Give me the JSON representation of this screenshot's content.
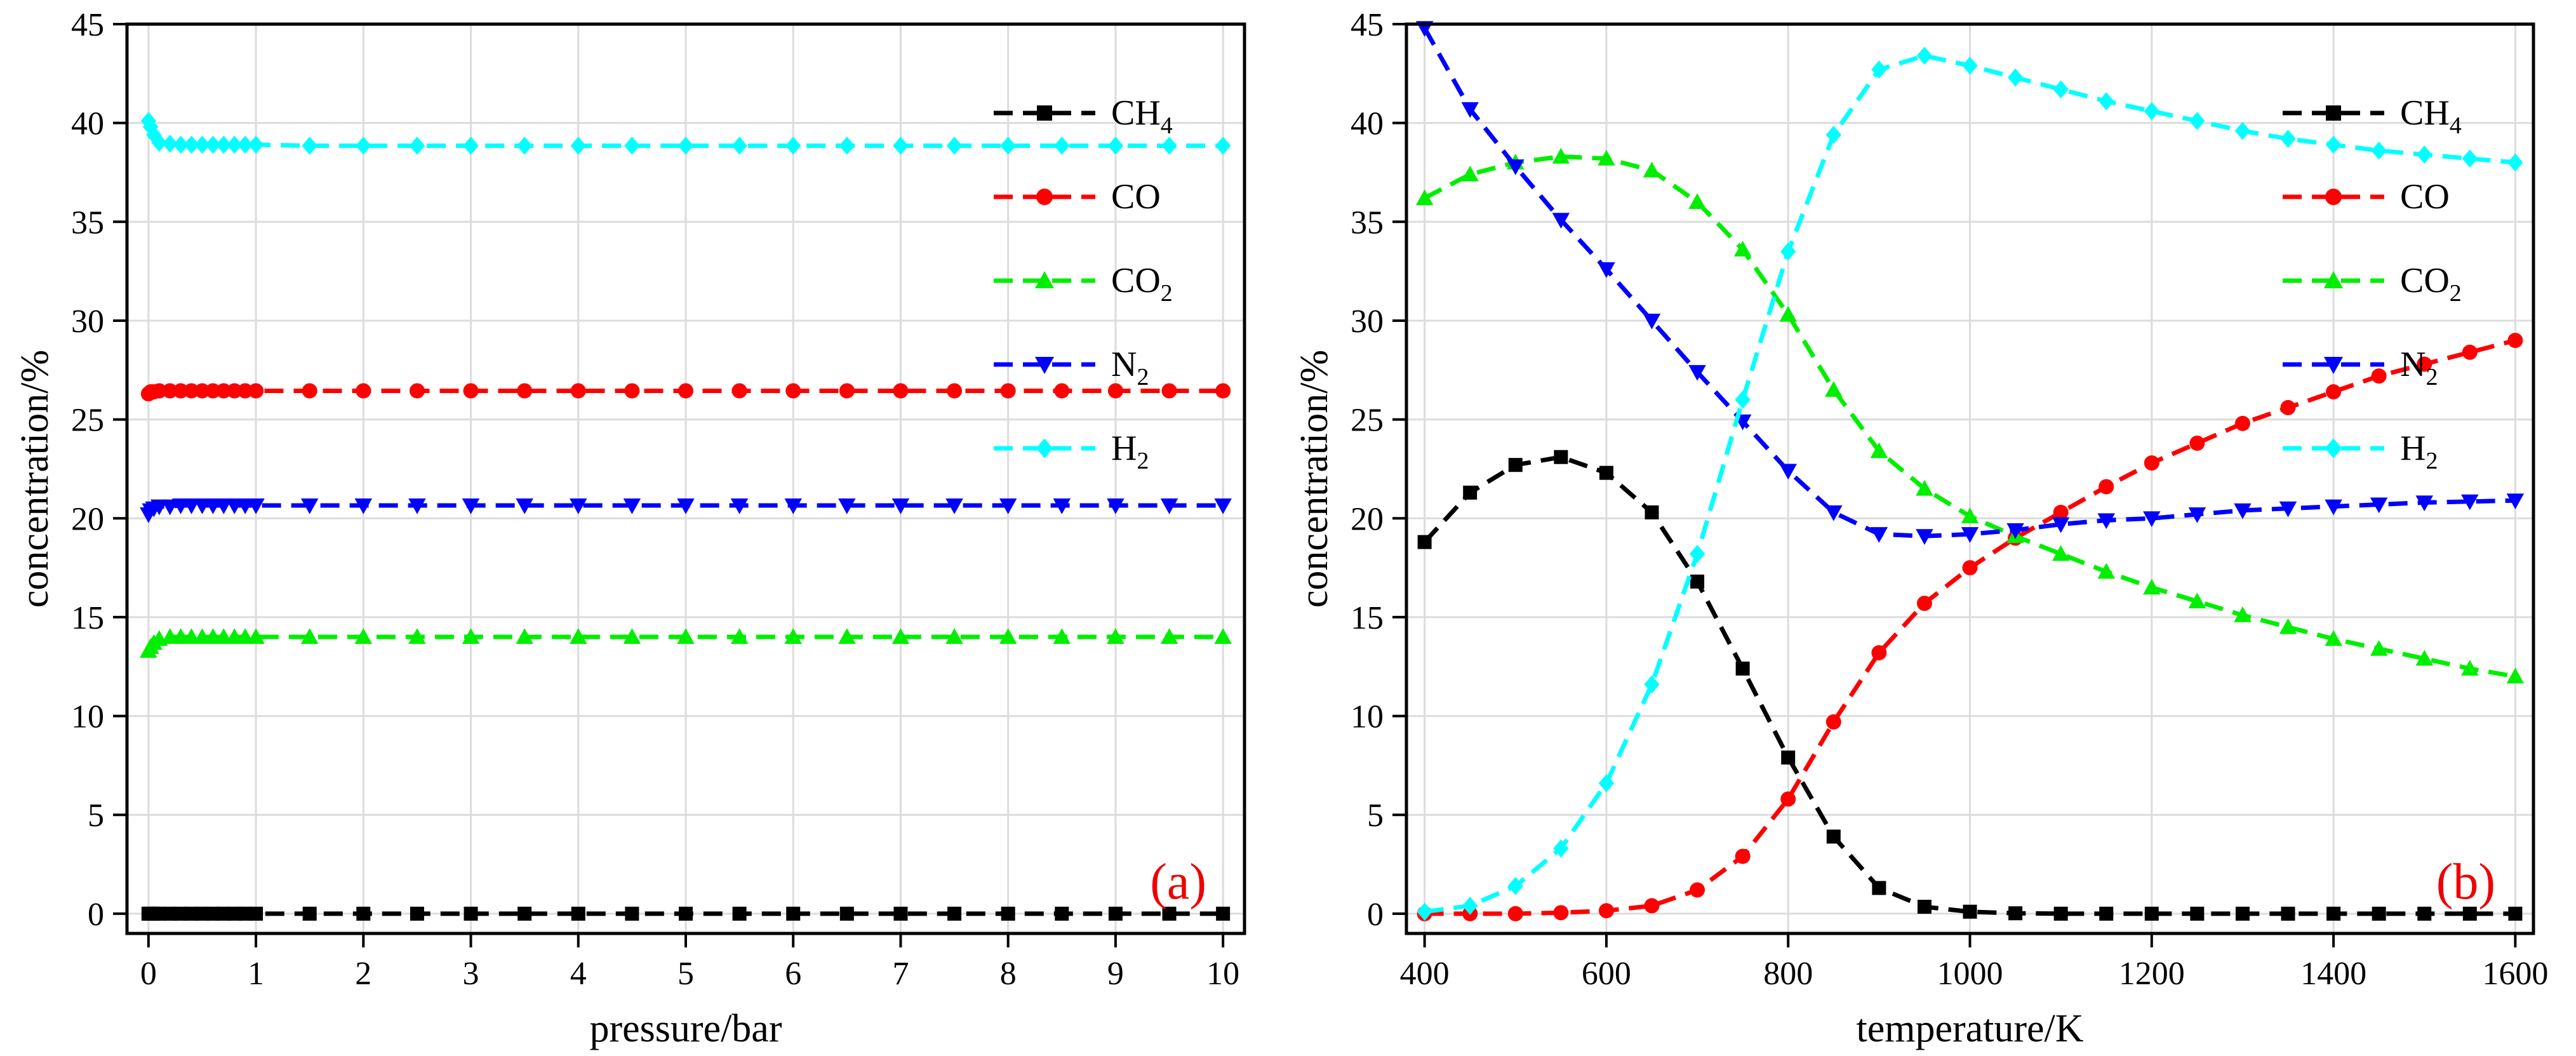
{
  "figure": {
    "series_styles": {
      "CH4": {
        "color": "#000000",
        "marker": "square"
      },
      "CO": {
        "color": "#ff0000",
        "marker": "circle"
      },
      "CO2": {
        "color": "#00ee00",
        "marker": "triangle-up"
      },
      "N2": {
        "color": "#0000ff",
        "marker": "triangle-down"
      },
      "H2": {
        "color": "#00ffff",
        "marker": "diamond"
      }
    },
    "panel_label_color": "#ee0000"
  },
  "chart_data": [
    {
      "type": "line",
      "panel_label": "(a)",
      "xlabel": "pressure/bar",
      "ylabel": "concentration/%",
      "xlim": [
        -0.2,
        10.2
      ],
      "ylim": [
        -1,
        45
      ],
      "xticks": [
        0,
        1,
        2,
        3,
        4,
        5,
        6,
        7,
        8,
        9,
        10
      ],
      "xtick_labels": [
        "0",
        "1",
        "2",
        "3",
        "4",
        "5",
        "6",
        "7",
        "8",
        "9",
        "10"
      ],
      "yticks": [
        0,
        5,
        10,
        15,
        20,
        25,
        30,
        35,
        40,
        45
      ],
      "ytick_labels": [
        "0",
        "5",
        "10",
        "15",
        "20",
        "25",
        "30",
        "35",
        "40",
        "45"
      ],
      "legend_position": "top-right",
      "x": [
        0,
        0.02,
        0.05,
        0.1,
        0.2,
        0.3,
        0.4,
        0.5,
        0.6,
        0.7,
        0.8,
        0.9,
        1.0,
        1.5,
        2,
        2.5,
        3,
        3.5,
        4,
        4.5,
        5,
        5.5,
        6,
        6.5,
        7,
        7.5,
        8,
        8.5,
        9,
        9.5,
        10
      ],
      "series": [
        {
          "key": "CH4",
          "name": "CH",
          "sub": "4",
          "values": [
            0,
            0,
            0,
            0,
            0,
            0,
            0,
            0,
            0,
            0,
            0,
            0,
            0,
            0,
            0,
            0,
            0,
            0,
            0,
            0,
            0,
            0,
            0,
            0,
            0,
            0,
            0,
            0,
            0,
            0,
            0
          ]
        },
        {
          "key": "CO",
          "name": "CO",
          "sub": "",
          "values": [
            26.3,
            26.4,
            26.4,
            26.45,
            26.45,
            26.45,
            26.45,
            26.45,
            26.45,
            26.45,
            26.45,
            26.45,
            26.45,
            26.45,
            26.45,
            26.45,
            26.45,
            26.45,
            26.45,
            26.45,
            26.45,
            26.45,
            26.45,
            26.45,
            26.45,
            26.45,
            26.45,
            26.45,
            26.45,
            26.45,
            26.45
          ]
        },
        {
          "key": "CO2",
          "name": "CO",
          "sub": "2",
          "values": [
            13.3,
            13.5,
            13.7,
            13.9,
            14.0,
            14.0,
            14.0,
            14.0,
            14.0,
            14.0,
            14.0,
            14.0,
            14.0,
            14.0,
            14.0,
            14.0,
            14.0,
            14.0,
            14.0,
            14.0,
            14.0,
            14.0,
            14.0,
            14.0,
            14.0,
            14.0,
            14.0,
            14.0,
            14.0,
            14.0,
            14.0
          ]
        },
        {
          "key": "N2",
          "name": "N",
          "sub": "2",
          "values": [
            20.2,
            20.4,
            20.5,
            20.6,
            20.6,
            20.65,
            20.65,
            20.65,
            20.65,
            20.65,
            20.65,
            20.65,
            20.65,
            20.65,
            20.65,
            20.65,
            20.65,
            20.65,
            20.65,
            20.65,
            20.65,
            20.65,
            20.65,
            20.65,
            20.65,
            20.65,
            20.65,
            20.65,
            20.65,
            20.65,
            20.65
          ]
        },
        {
          "key": "H2",
          "name": "H",
          "sub": "2",
          "values": [
            40.1,
            39.8,
            39.4,
            39.0,
            38.95,
            38.9,
            38.9,
            38.9,
            38.9,
            38.9,
            38.9,
            38.9,
            38.9,
            38.85,
            38.85,
            38.85,
            38.85,
            38.85,
            38.85,
            38.85,
            38.85,
            38.85,
            38.85,
            38.85,
            38.85,
            38.85,
            38.85,
            38.85,
            38.85,
            38.85,
            38.85
          ]
        }
      ]
    },
    {
      "type": "line",
      "panel_label": "(b)",
      "xlabel": "temperature/K",
      "ylabel": "concentration/%",
      "xlim": [
        380,
        1620
      ],
      "ylim": [
        -1,
        45
      ],
      "xticks": [
        400,
        600,
        800,
        1000,
        1200,
        1400,
        1600
      ],
      "xtick_labels": [
        "400",
        "600",
        "800",
        "1000",
        "1200",
        "1400",
        "1600"
      ],
      "yticks": [
        0,
        5,
        10,
        15,
        20,
        25,
        30,
        35,
        40,
        45
      ],
      "ytick_labels": [
        "0",
        "5",
        "10",
        "15",
        "20",
        "25",
        "30",
        "35",
        "40",
        "45"
      ],
      "legend_position": "top-right",
      "x": [
        400,
        450,
        500,
        550,
        600,
        650,
        700,
        750,
        800,
        850,
        900,
        950,
        1000,
        1050,
        1100,
        1150,
        1200,
        1250,
        1300,
        1350,
        1400,
        1450,
        1500,
        1550,
        1600
      ],
      "series": [
        {
          "key": "CH4",
          "name": "CH",
          "sub": "4",
          "values": [
            18.8,
            21.3,
            22.7,
            23.1,
            22.3,
            20.3,
            16.8,
            12.4,
            7.9,
            3.9,
            1.3,
            0.35,
            0.1,
            0.02,
            0,
            0,
            0,
            0,
            0,
            0,
            0,
            0,
            0,
            0,
            0
          ]
        },
        {
          "key": "CO",
          "name": "CO",
          "sub": "",
          "values": [
            0,
            0,
            0,
            0.05,
            0.15,
            0.4,
            1.2,
            2.9,
            5.8,
            9.7,
            13.2,
            15.7,
            17.5,
            19.0,
            20.3,
            21.6,
            22.8,
            23.8,
            24.8,
            25.6,
            26.4,
            27.2,
            27.8,
            28.4,
            29.0
          ]
        },
        {
          "key": "CO2",
          "name": "CO",
          "sub": "2",
          "values": [
            36.2,
            37.4,
            38.0,
            38.3,
            38.2,
            37.6,
            36.0,
            33.6,
            30.3,
            26.5,
            23.4,
            21.5,
            20.1,
            19.1,
            18.2,
            17.3,
            16.5,
            15.8,
            15.1,
            14.5,
            13.9,
            13.4,
            12.9,
            12.4,
            12.0
          ]
        },
        {
          "key": "N2",
          "name": "N",
          "sub": "2",
          "values": [
            44.8,
            40.7,
            37.8,
            35.1,
            32.6,
            30.0,
            27.4,
            24.9,
            22.4,
            20.3,
            19.2,
            19.1,
            19.2,
            19.4,
            19.7,
            19.9,
            20.0,
            20.2,
            20.4,
            20.5,
            20.6,
            20.7,
            20.8,
            20.85,
            20.9
          ]
        },
        {
          "key": "H2",
          "name": "H",
          "sub": "2",
          "values": [
            0.1,
            0.4,
            1.4,
            3.3,
            6.6,
            11.6,
            18.2,
            26.0,
            33.5,
            39.4,
            42.7,
            43.4,
            42.9,
            42.3,
            41.7,
            41.1,
            40.6,
            40.1,
            39.6,
            39.2,
            38.9,
            38.6,
            38.4,
            38.2,
            38.0
          ]
        }
      ]
    }
  ]
}
